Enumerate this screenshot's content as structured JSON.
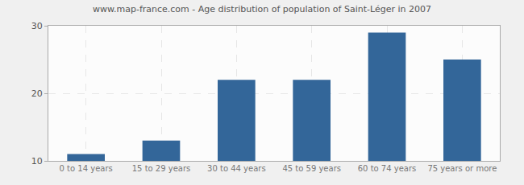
{
  "chart_data": {
    "type": "bar",
    "title": "www.map-france.com - Age distribution of population of Saint-Léger in 2007",
    "categories": [
      "0 to 14 years",
      "15 to 29 years",
      "30 to 44 years",
      "45 to 59 years",
      "60 to 74 years",
      "75 years or more"
    ],
    "values": [
      11,
      13,
      22,
      22,
      29,
      25
    ],
    "color": "#336699",
    "ylim": [
      10,
      30
    ],
    "yticks": [
      10,
      20,
      30
    ],
    "grid": true
  }
}
